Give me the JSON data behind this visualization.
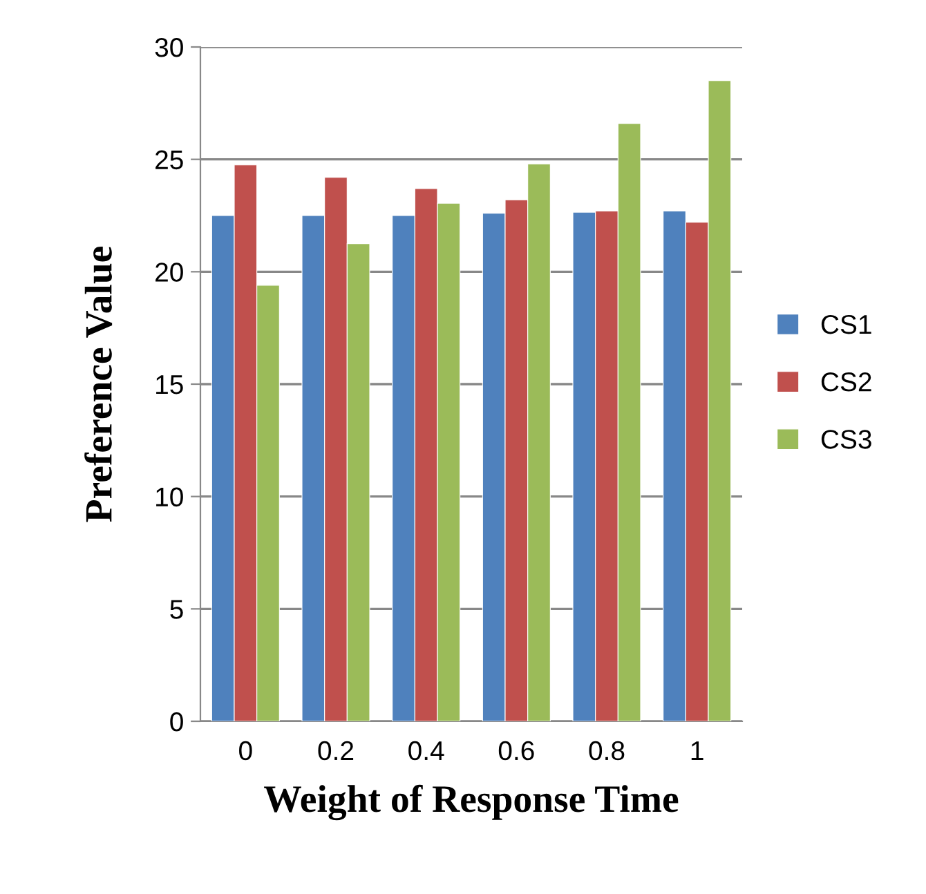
{
  "chart_data": {
    "type": "bar",
    "xlabel": "Weight of Response Time",
    "ylabel": "Preference Value",
    "categories": [
      "0",
      "0.2",
      "0.4",
      "0.6",
      "0.8",
      "1"
    ],
    "series": [
      {
        "name": "CS1",
        "color": "#4f81bd",
        "values": [
          22.5,
          22.5,
          22.5,
          22.6,
          22.65,
          22.7
        ]
      },
      {
        "name": "CS2",
        "color": "#c0504d",
        "values": [
          24.75,
          24.2,
          23.7,
          23.2,
          22.7,
          22.2
        ]
      },
      {
        "name": "CS3",
        "color": "#9bbb59",
        "values": [
          19.4,
          21.25,
          23.05,
          24.8,
          26.6,
          28.5
        ]
      }
    ],
    "ylim": [
      0,
      30
    ],
    "yticks": [
      0,
      5,
      10,
      15,
      20,
      25,
      30
    ],
    "grid": "y",
    "legend": "right"
  }
}
